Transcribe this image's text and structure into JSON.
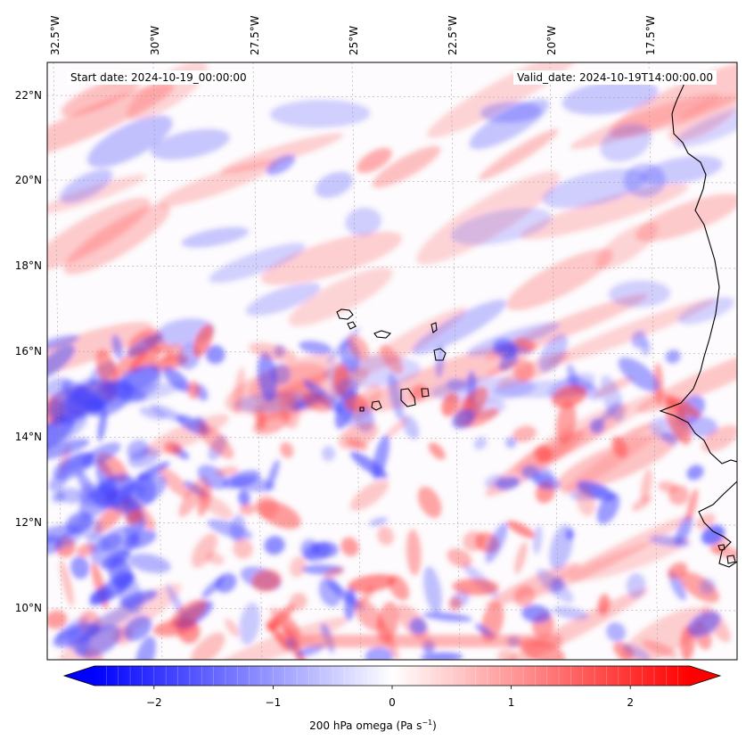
{
  "map": {
    "start_date_label": "Start date: 2024-10-19_00:00:00",
    "valid_date_label": "Valid_date: 2024-10-19T14:00:00.00",
    "variable": "200 hPa omega",
    "units_prefix": "200 hPa omega (Pa s",
    "units_superscript": "−1",
    "units_suffix": ")",
    "lon_ticks": [
      "32.5°W",
      "30°W",
      "27.5°W",
      "25°W",
      "22.5°W",
      "20°W",
      "17.5°W"
    ],
    "lat_ticks": [
      "22°N",
      "20°N",
      "18°N",
      "16°N",
      "14°N",
      "12°N",
      "10°N"
    ],
    "extent": {
      "lon": [
        -33.0,
        -15.5
      ],
      "lat": [
        8.9,
        22.8
      ]
    },
    "colormap": "bwr",
    "colors": {
      "negative": "#0000ff",
      "zero": "#ffffff",
      "positive": "#ff0000",
      "coast": "#000000",
      "grid": "#999999"
    }
  },
  "colorbar": {
    "range": [
      -2.5,
      2.5
    ],
    "ticks": [
      "−2",
      "−1",
      "0",
      "1",
      "2"
    ],
    "extend": "both"
  }
}
